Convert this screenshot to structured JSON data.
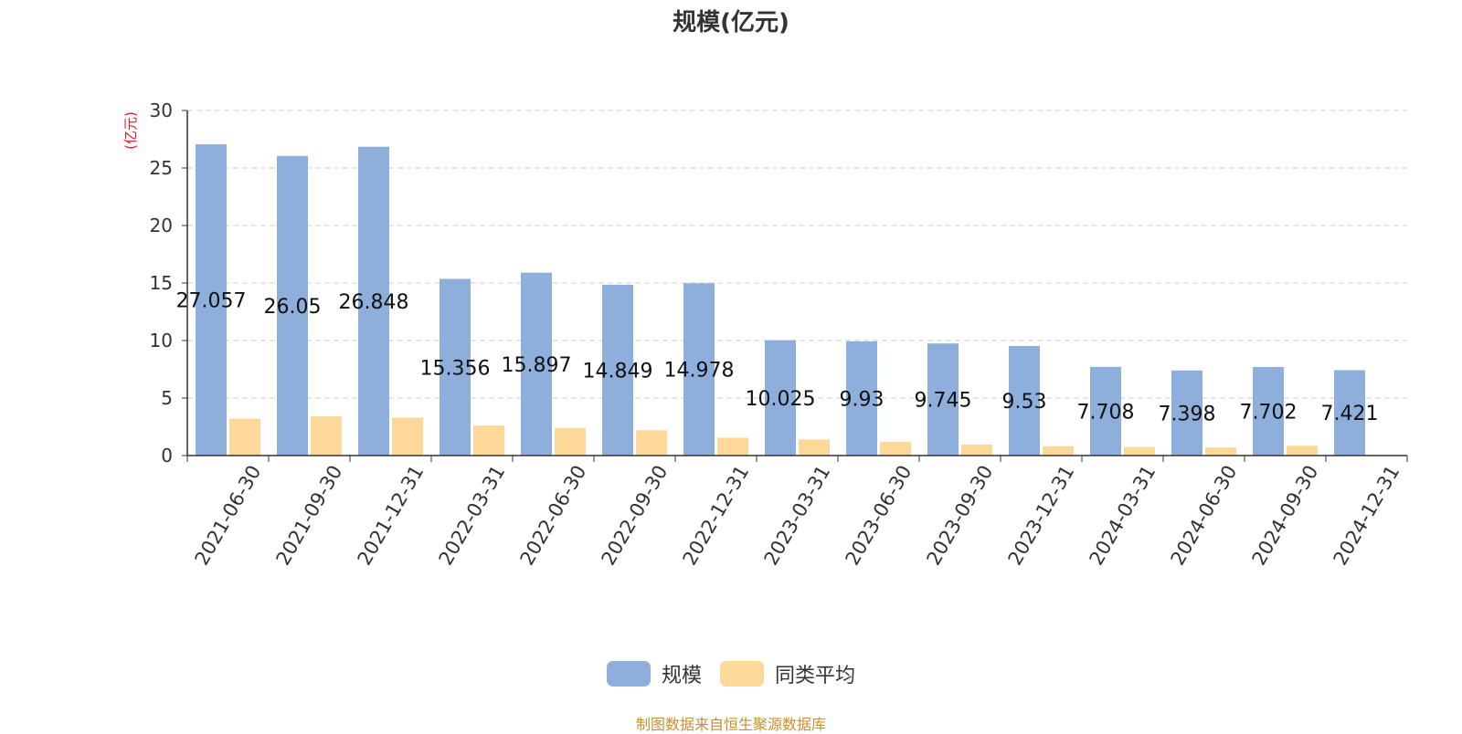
{
  "chart_data": {
    "type": "bar",
    "title": "规模(亿元)",
    "ylabel": "(亿元)",
    "xlabel": "",
    "ylim": [
      0,
      30
    ],
    "yticks": [
      0,
      5,
      10,
      15,
      20,
      25,
      30
    ],
    "grid": true,
    "legend_position": "bottom",
    "categories": [
      "2021-06-30",
      "2021-09-30",
      "2021-12-31",
      "2022-03-31",
      "2022-06-30",
      "2022-09-30",
      "2022-12-31",
      "2023-03-31",
      "2023-06-30",
      "2023-09-30",
      "2023-12-31",
      "2024-03-31",
      "2024-06-30",
      "2024-09-30",
      "2024-12-31"
    ],
    "series": [
      {
        "name": "规模",
        "color": "#8eaedb",
        "values": [
          27.057,
          26.05,
          26.848,
          15.356,
          15.897,
          14.849,
          14.978,
          10.025,
          9.93,
          9.745,
          9.53,
          7.708,
          7.398,
          7.702,
          7.421
        ],
        "labels": [
          "27.057",
          "26.05",
          "26.848",
          "15.356",
          "15.897",
          "14.849",
          "14.978",
          "10.025",
          "9.93",
          "9.745",
          "9.53",
          "7.708",
          "7.398",
          "7.702",
          "7.421"
        ]
      },
      {
        "name": "同类平均",
        "color": "#fdd898",
        "values": [
          3.2,
          3.4,
          3.3,
          2.6,
          2.4,
          2.2,
          1.55,
          1.4,
          1.2,
          0.95,
          0.8,
          0.75,
          0.7,
          0.85,
          null
        ]
      }
    ]
  },
  "source_note": "制图数据来自恒生聚源数据库"
}
